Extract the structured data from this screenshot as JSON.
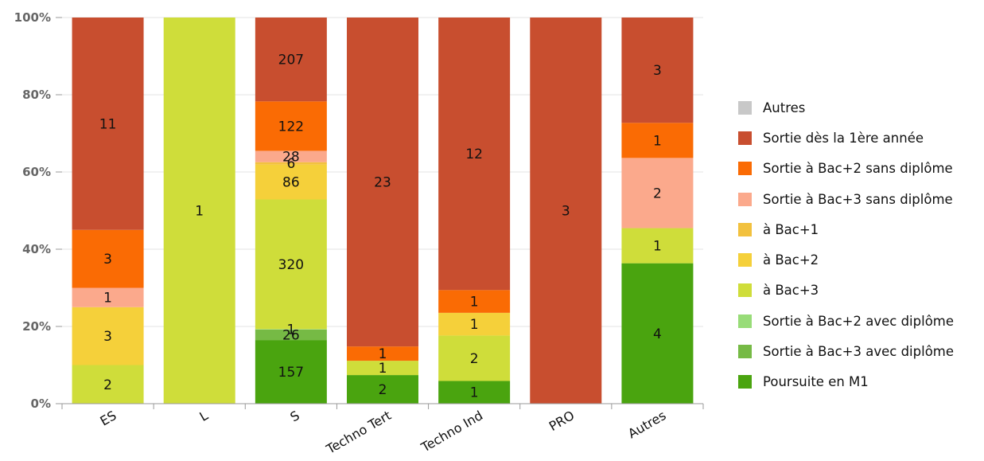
{
  "chart_data": {
    "type": "bar",
    "stacked": true,
    "normalized": true,
    "y_ticks": [
      "0%",
      "20%",
      "40%",
      "60%",
      "80%",
      "100%"
    ],
    "ylim": [
      0,
      100
    ],
    "grid": true,
    "legend_position": "right",
    "categories": [
      "ES",
      "L",
      "S",
      "Techno Tert",
      "Techno Ind",
      "PRO",
      "Autres"
    ],
    "series": [
      {
        "name": "Autres",
        "color": "#c8c8c8",
        "values": [
          0,
          0,
          0,
          0,
          0,
          0,
          0
        ]
      },
      {
        "name": "Sortie dès la 1ère année",
        "color": "#c84e2f",
        "values": [
          11,
          0,
          207,
          23,
          12,
          3,
          3
        ]
      },
      {
        "name": "Sortie à Bac+2 sans diplôme",
        "color": "#fa6b04",
        "values": [
          3,
          0,
          122,
          1,
          1,
          0,
          1
        ]
      },
      {
        "name": "Sortie à Bac+3 sans diplôme",
        "color": "#fba98c",
        "values": [
          1,
          0,
          28,
          0,
          0,
          0,
          2
        ]
      },
      {
        "name": "à Bac+1",
        "color": "#f2c13e",
        "values": [
          0,
          0,
          6,
          0,
          0,
          0,
          0
        ]
      },
      {
        "name": "à Bac+2",
        "color": "#f5d03a",
        "values": [
          3,
          0,
          86,
          0,
          1,
          0,
          0
        ]
      },
      {
        "name": "à Bac+3",
        "color": "#cfdd3a",
        "values": [
          2,
          1,
          320,
          1,
          2,
          0,
          1
        ]
      },
      {
        "name": "Sortie à Bac+2 avec diplôme",
        "color": "#98dc78",
        "values": [
          0,
          0,
          1,
          0,
          0,
          0,
          0
        ]
      },
      {
        "name": "Sortie à Bac+3 avec diplôme",
        "color": "#76ba45",
        "values": [
          0,
          0,
          26,
          0,
          0,
          0,
          0
        ]
      },
      {
        "name": "Poursuite en M1",
        "color": "#4aa40f",
        "values": [
          0,
          0,
          157,
          2,
          1,
          0,
          4
        ]
      }
    ]
  }
}
